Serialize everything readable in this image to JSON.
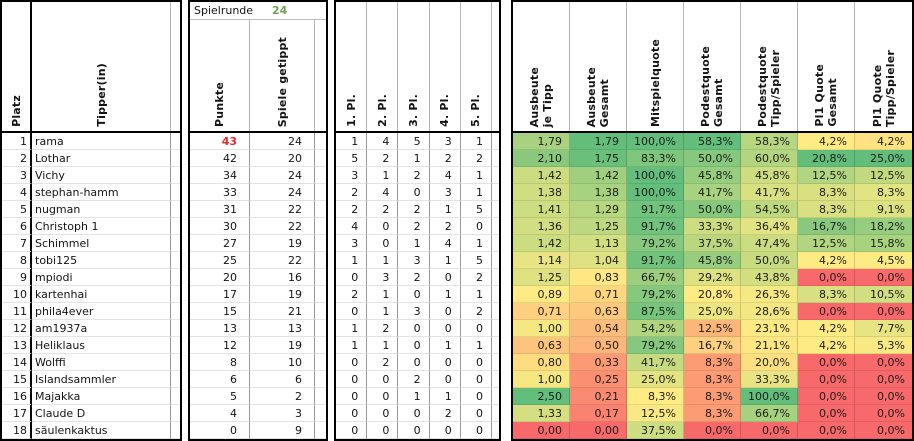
{
  "headers": {
    "platz": "Platz",
    "tipper": "Tipper(in)",
    "spielrunde_label": "Spielrunde",
    "spielrunde_value": "24",
    "punkte": "Punkte",
    "spiele": "Spiele getippt",
    "placements": [
      "1. Pl.",
      "2. Pl.",
      "3. Pl.",
      "4. Pl.",
      "5. Pl."
    ],
    "stats": [
      "Ausbeute\nje Tipp",
      "Ausbeute\nGesamt",
      "Mitspielquote",
      "Podestquote\nGesamt",
      "Podestquote\nTipp/Spieler",
      "Pl1 Quote\nGesamt",
      "Pl1 Quote\nTipp/Spieler"
    ]
  },
  "rows": [
    {
      "platz": "1",
      "name": "rama",
      "punkte": "43",
      "punkte_highlight": true,
      "spiele": "24",
      "pl": [
        "1",
        "4",
        "5",
        "3",
        "1"
      ],
      "stats": [
        "1,79",
        "1,79",
        "100,0%",
        "58,3%",
        "58,3%",
        "4,2%",
        "4,2%"
      ]
    },
    {
      "platz": "2",
      "name": "Lothar",
      "punkte": "42",
      "punkte_highlight": false,
      "spiele": "20",
      "pl": [
        "5",
        "2",
        "1",
        "2",
        "2"
      ],
      "stats": [
        "2,10",
        "1,75",
        "83,3%",
        "50,0%",
        "60,0%",
        "20,8%",
        "25,0%"
      ]
    },
    {
      "platz": "3",
      "name": "Vichy",
      "punkte": "34",
      "punkte_highlight": false,
      "spiele": "24",
      "pl": [
        "3",
        "1",
        "2",
        "4",
        "1"
      ],
      "stats": [
        "1,42",
        "1,42",
        "100,0%",
        "45,8%",
        "45,8%",
        "12,5%",
        "12,5%"
      ]
    },
    {
      "platz": "4",
      "name": "stephan-hamm",
      "punkte": "33",
      "punkte_highlight": false,
      "spiele": "24",
      "pl": [
        "2",
        "4",
        "0",
        "3",
        "1"
      ],
      "stats": [
        "1,38",
        "1,38",
        "100,0%",
        "41,7%",
        "41,7%",
        "8,3%",
        "8,3%"
      ]
    },
    {
      "platz": "5",
      "name": "nugman",
      "punkte": "31",
      "punkte_highlight": false,
      "spiele": "22",
      "pl": [
        "2",
        "2",
        "2",
        "1",
        "5"
      ],
      "stats": [
        "1,41",
        "1,29",
        "91,7%",
        "50,0%",
        "54,5%",
        "8,3%",
        "9,1%"
      ]
    },
    {
      "platz": "6",
      "name": "Christoph 1",
      "punkte": "30",
      "punkte_highlight": false,
      "spiele": "22",
      "pl": [
        "4",
        "0",
        "2",
        "2",
        "0"
      ],
      "stats": [
        "1,36",
        "1,25",
        "91,7%",
        "33,3%",
        "36,4%",
        "16,7%",
        "18,2%"
      ]
    },
    {
      "platz": "7",
      "name": "Schimmel",
      "punkte": "27",
      "punkte_highlight": false,
      "spiele": "19",
      "pl": [
        "3",
        "0",
        "1",
        "4",
        "1"
      ],
      "stats": [
        "1,42",
        "1,13",
        "79,2%",
        "37,5%",
        "47,4%",
        "12,5%",
        "15,8%"
      ]
    },
    {
      "platz": "8",
      "name": "tobi125",
      "punkte": "25",
      "punkte_highlight": false,
      "spiele": "22",
      "pl": [
        "1",
        "1",
        "3",
        "1",
        "5"
      ],
      "stats": [
        "1,14",
        "1,04",
        "91,7%",
        "45,8%",
        "50,0%",
        "4,2%",
        "4,5%"
      ]
    },
    {
      "platz": "9",
      "name": "mpiodi",
      "punkte": "20",
      "punkte_highlight": false,
      "spiele": "16",
      "pl": [
        "0",
        "3",
        "2",
        "0",
        "2"
      ],
      "stats": [
        "1,25",
        "0,83",
        "66,7%",
        "29,2%",
        "43,8%",
        "0,0%",
        "0,0%"
      ]
    },
    {
      "platz": "10",
      "name": "kartenhai",
      "punkte": "17",
      "punkte_highlight": false,
      "spiele": "19",
      "pl": [
        "2",
        "1",
        "0",
        "1",
        "1"
      ],
      "stats": [
        "0,89",
        "0,71",
        "79,2%",
        "20,8%",
        "26,3%",
        "8,3%",
        "10,5%"
      ]
    },
    {
      "platz": "11",
      "name": "phila4ever",
      "punkte": "15",
      "punkte_highlight": false,
      "spiele": "21",
      "pl": [
        "0",
        "1",
        "3",
        "0",
        "2"
      ],
      "stats": [
        "0,71",
        "0,63",
        "87,5%",
        "25,0%",
        "28,6%",
        "0,0%",
        "0,0%"
      ]
    },
    {
      "platz": "12",
      "name": "am1937a",
      "punkte": "13",
      "punkte_highlight": false,
      "spiele": "13",
      "pl": [
        "1",
        "2",
        "0",
        "0",
        "0"
      ],
      "stats": [
        "1,00",
        "0,54",
        "54,2%",
        "12,5%",
        "23,1%",
        "4,2%",
        "7,7%"
      ]
    },
    {
      "platz": "13",
      "name": "Heliklaus",
      "punkte": "12",
      "punkte_highlight": false,
      "spiele": "19",
      "pl": [
        "1",
        "1",
        "0",
        "1",
        "1"
      ],
      "stats": [
        "0,63",
        "0,50",
        "79,2%",
        "16,7%",
        "21,1%",
        "4,2%",
        "5,3%"
      ]
    },
    {
      "platz": "14",
      "name": "Wolffi",
      "punkte": "8",
      "punkte_highlight": false,
      "spiele": "10",
      "pl": [
        "0",
        "2",
        "0",
        "0",
        "0"
      ],
      "stats": [
        "0,80",
        "0,33",
        "41,7%",
        "8,3%",
        "20,0%",
        "0,0%",
        "0,0%"
      ]
    },
    {
      "platz": "15",
      "name": "Islandsammler",
      "punkte": "6",
      "punkte_highlight": false,
      "spiele": "6",
      "pl": [
        "0",
        "0",
        "2",
        "0",
        "0"
      ],
      "stats": [
        "1,00",
        "0,25",
        "25,0%",
        "8,3%",
        "33,3%",
        "0,0%",
        "0,0%"
      ]
    },
    {
      "platz": "16",
      "name": "Majakka",
      "punkte": "5",
      "punkte_highlight": false,
      "spiele": "2",
      "pl": [
        "0",
        "0",
        "1",
        "1",
        "0"
      ],
      "stats": [
        "2,50",
        "0,21",
        "8,3%",
        "8,3%",
        "100,0%",
        "0,0%",
        "0,0%"
      ]
    },
    {
      "platz": "17",
      "name": "Claude D",
      "punkte": "4",
      "punkte_highlight": false,
      "spiele": "3",
      "pl": [
        "0",
        "0",
        "0",
        "2",
        "0"
      ],
      "stats": [
        "1,33",
        "0,17",
        "12,5%",
        "8,3%",
        "66,7%",
        "0,0%",
        "0,0%"
      ]
    },
    {
      "platz": "18",
      "name": "säulenkaktus",
      "punkte": "0",
      "punkte_highlight": false,
      "spiele": "9",
      "pl": [
        "0",
        "0",
        "0",
        "0",
        "0"
      ],
      "stats": [
        "0,00",
        "0,00",
        "37,5%",
        "0,0%",
        "0,0%",
        "0,0%",
        "0,0%"
      ]
    }
  ],
  "stat_scales": [
    {
      "type": "red_yellow_green",
      "min": 0,
      "mid": 0.9,
      "max": 2.5
    },
    {
      "type": "red_yellow_green",
      "min": 0,
      "mid": 0.85,
      "max": 1.79
    },
    {
      "type": "yellow_green",
      "min": 8.3,
      "max": 100
    },
    {
      "type": "red_yellow_green",
      "min": 0,
      "mid": 21,
      "max": 58.3
    },
    {
      "type": "red_yellow_green",
      "min": 0,
      "mid": 22,
      "max": 100
    },
    {
      "type": "red_yellow_green",
      "min": 0,
      "mid": 4.2,
      "max": 20.8
    },
    {
      "type": "red_yellow_green",
      "min": 0,
      "mid": 4.5,
      "max": 25
    }
  ],
  "colors": {
    "scale_red": "#F8696B",
    "scale_yellow": "#FFEB84",
    "scale_green": "#63BE7B",
    "leader_red": "#E52A2A",
    "round_green": "#6FA355"
  }
}
